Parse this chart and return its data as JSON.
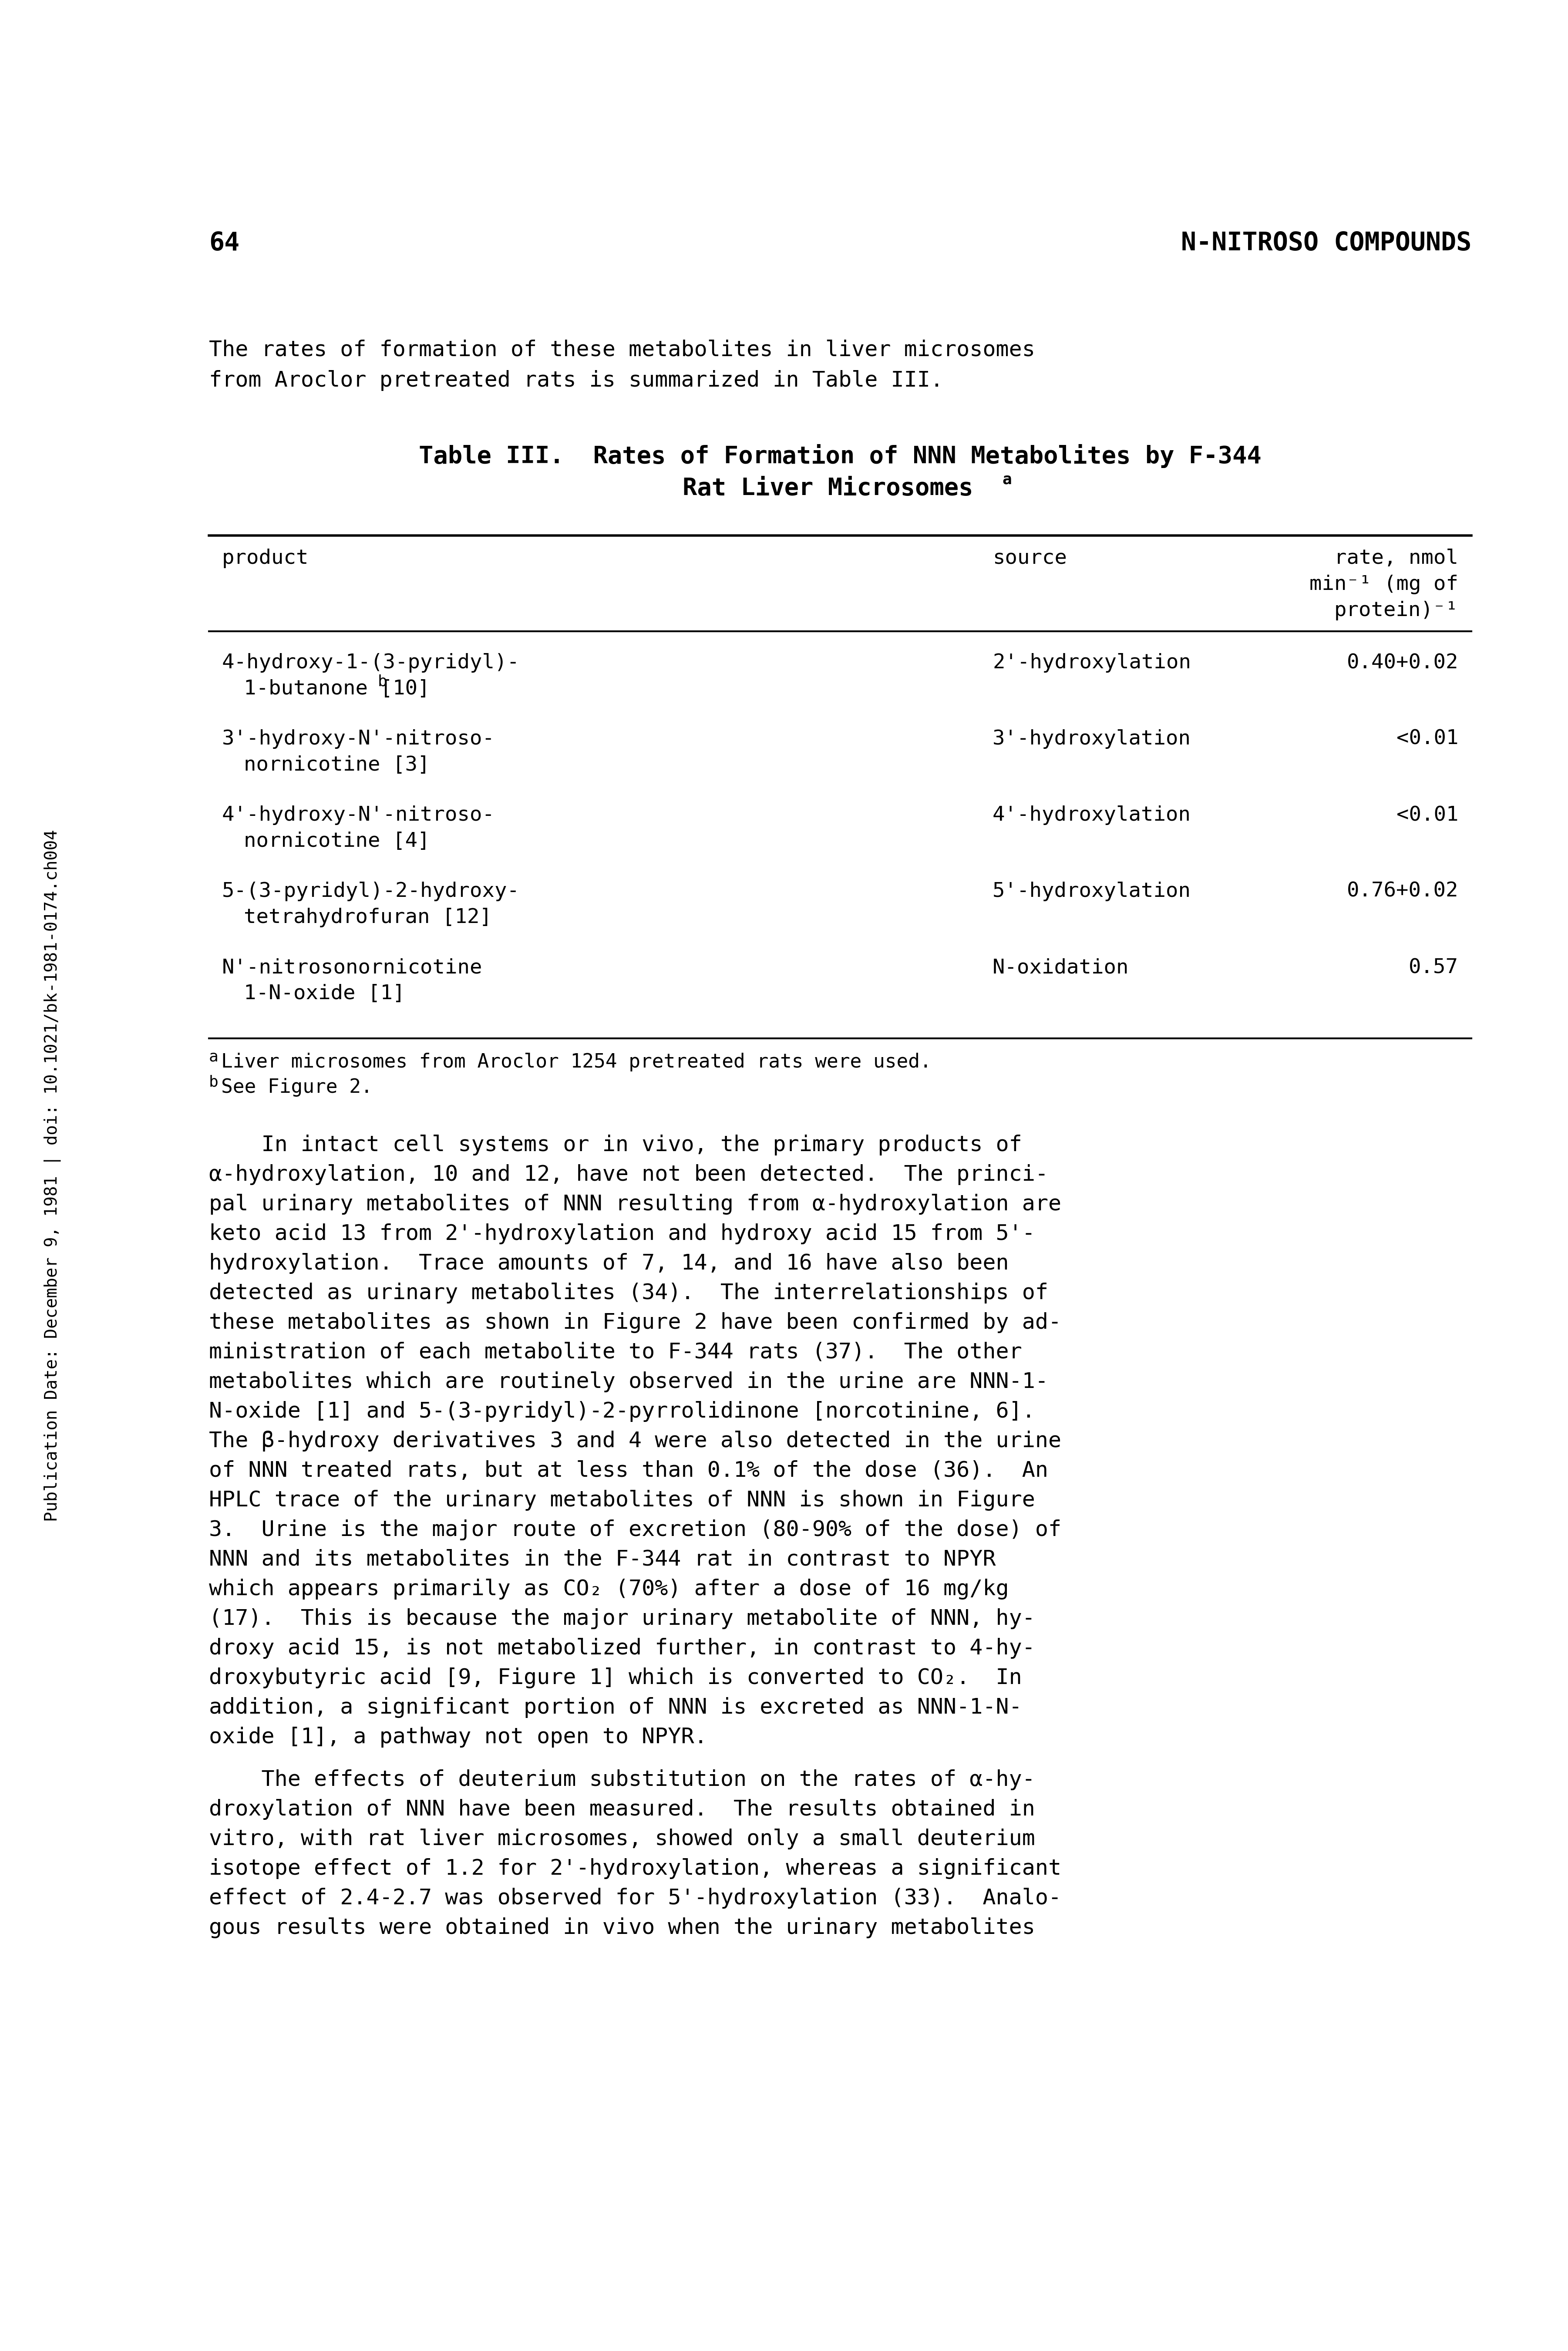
{
  "page_number": "64",
  "page_header_right": "N-NITROSO COMPOUNDS",
  "sidebar_text": "Publication Date: December 9, 1981 | doi: 10.1021/bk-1981-0174.ch004",
  "intro_line1": "The rates of formation of these metabolites in liver microsomes",
  "intro_line2": "from Aroclor pretreated rats is summarized in Table III.",
  "table_title_line1": "Table III.  Rates of Formation of NNN Metabolites by F-344",
  "table_title_line2": "Rat Liver Microsomes",
  "table_title_superscript": "a",
  "rate_header": [
    "rate, nmol",
    "min⁻¹ (mg of",
    "protein)⁻¹"
  ],
  "table_rows": [
    {
      "product_line1": "4-hydroxy-1-(3-pyridyl)-",
      "product_line2": "1-butanone [10]",
      "product_superscript": "b",
      "source": "2'-hydroxylation",
      "rate": "0.40+0.02"
    },
    {
      "product_line1": "3'-hydroxy-N'-nitroso-",
      "product_line2": "nornicotine [3]",
      "product_superscript": "",
      "source": "3'-hydroxylation",
      "rate": "<0.01"
    },
    {
      "product_line1": "4'-hydroxy-N'-nitroso-",
      "product_line2": "nornicotine [4]",
      "product_superscript": "",
      "source": "4'-hydroxylation",
      "rate": "<0.01"
    },
    {
      "product_line1": "5-(3-pyridyl)-2-hydroxy-",
      "product_line2": "tetrahydrofuran [12]",
      "product_superscript": "",
      "source": "5'-hydroxylation",
      "rate": "0.76+0.02"
    },
    {
      "product_line1": "N'-nitrosonornicotine",
      "product_line2": "1-N-oxide [1]",
      "product_superscript": "",
      "source": "N-oxidation",
      "rate": "0.57"
    }
  ],
  "footnote_a": "aLiver microsomes from Aroclor 1254 pretreated rats were used.",
  "footnote_b": "bSee Figure 2.",
  "body_para1": [
    "    In intact cell systems or in vivo, the primary products of",
    "α-hydroxylation, 10 and 12, have not been detected.  The princi-",
    "pal urinary metabolites of NNN resulting from α-hydroxylation are",
    "keto acid 13 from 2'-hydroxylation and hydroxy acid 15 from 5'-",
    "hydroxylation.  Trace amounts of 7, 14, and 16 have also been",
    "detected as urinary metabolites (34).  The interrelationships of",
    "these metabolites as shown in Figure 2 have been confirmed by ad-",
    "ministration of each metabolite to F-344 rats (37).  The other",
    "metabolites which are routinely observed in the urine are NNN-1-",
    "N-oxide [1] and 5-(3-pyridyl)-2-pyrrolidinone [norcotinine, 6].",
    "The β-hydroxy derivatives 3 and 4 were also detected in the urine",
    "of NNN treated rats, but at less than 0.1% of the dose (36).  An",
    "HPLC trace of the urinary metabolites of NNN is shown in Figure",
    "3.  Urine is the major route of excretion (80-90% of the dose) of",
    "NNN and its metabolites in the F-344 rat in contrast to NPYR",
    "which appears primarily as CO₂ (70%) after a dose of 16 mg/kg",
    "(17).  This is because the major urinary metabolite of NNN, hy-",
    "droxy acid 15, is not metabolized further, in contrast to 4-hy-",
    "droxybutyric acid [9, Figure 1] which is converted to CO₂.  In",
    "addition, a significant portion of NNN is excreted as NNN-1-N-",
    "oxide [1], a pathway not open to NPYR."
  ],
  "body_para2": [
    "    The effects of deuterium substitution on the rates of α-hy-",
    "droxylation of NNN have been measured.  The results obtained in",
    "vitro, with rat liver microsomes, showed only a small deuterium",
    "isotope effect of 1.2 for 2'-hydroxylation, whereas a significant",
    "effect of 2.4-2.7 was observed for 5'-hydroxylation (33).  Analo-",
    "gous results were obtained in vivo when the urinary metabolites"
  ],
  "bg_color": "#ffffff",
  "text_color": "#000000"
}
